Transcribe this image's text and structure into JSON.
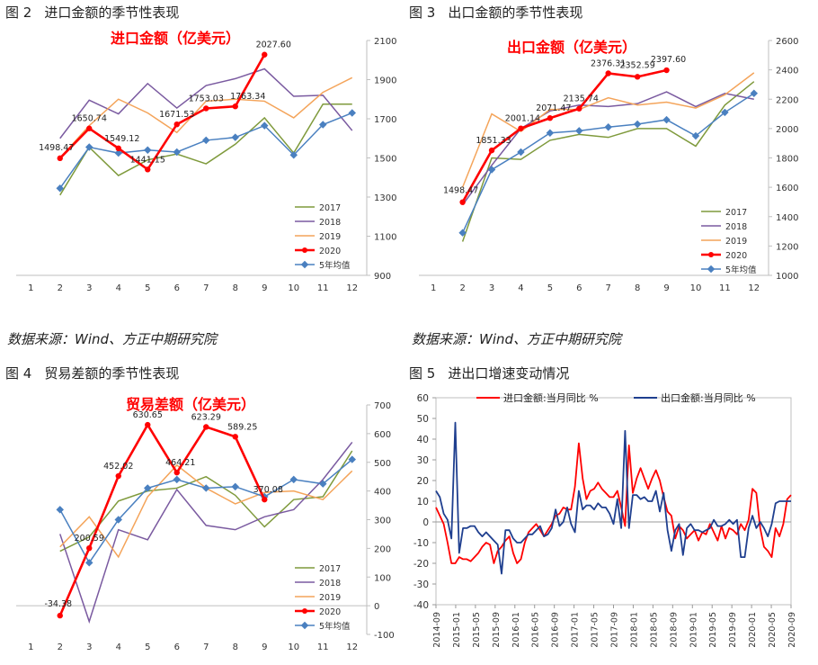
{
  "fig2": {
    "label": "图 2",
    "title": "进口金额的季节性表现",
    "chart_data": {
      "type": "line",
      "title": "进口金额（亿美元）",
      "categories": [
        "1",
        "2",
        "3",
        "4",
        "5",
        "6",
        "7",
        "8",
        "9",
        "10",
        "11",
        "12"
      ],
      "ylim": [
        900,
        2100
      ],
      "yticks": [
        "900",
        "1100",
        "1300",
        "1500",
        "1700",
        "1900",
        "2100"
      ],
      "series": [
        {
          "name": "2017",
          "color": "#7f9a3c",
          "values": [
            null,
            1310,
            1555,
            1410,
            1490,
            1520,
            1470,
            1570,
            1705,
            1525,
            1775,
            1775
          ]
        },
        {
          "name": "2018",
          "color": "#7a5aa0",
          "values": [
            null,
            1600,
            1795,
            1725,
            1880,
            1755,
            1870,
            1905,
            1955,
            1815,
            1820,
            1640
          ]
        },
        {
          "name": "2019",
          "color": "#f4a45a",
          "values": [
            null,
            1500,
            1665,
            1800,
            1730,
            1630,
            1790,
            1800,
            1790,
            1705,
            1835,
            1910
          ]
        },
        {
          "name": "2020",
          "color": "#ff0000",
          "values": [
            null,
            1498.47,
            1650.74,
            1549.12,
            1441.15,
            1671.53,
            1753.03,
            1763.34,
            2027.6,
            null,
            null,
            null
          ]
        },
        {
          "name": "5年均值",
          "color": "#4a80c0",
          "values": [
            null,
            1345,
            1555,
            1525,
            1540,
            1530,
            1590,
            1605,
            1665,
            1515,
            1670,
            1730
          ]
        }
      ],
      "data_labels": [
        "1498.47",
        "1650.74",
        "1549.12",
        "1441.15",
        "1671.53",
        "1753.03",
        "1763.34",
        "2027.60"
      ]
    }
  },
  "fig3": {
    "label": "图 3",
    "title": "出口金额的季节性表现",
    "chart_data": {
      "type": "line",
      "title": "出口金额（亿美元）",
      "categories": [
        "1",
        "2",
        "3",
        "4",
        "5",
        "6",
        "7",
        "8",
        "9",
        "10",
        "11",
        "12"
      ],
      "ylim": [
        1000,
        2600
      ],
      "yticks": [
        "1000",
        "1200",
        "1400",
        "1600",
        "1800",
        "2000",
        "2200",
        "2400",
        "2600"
      ],
      "series": [
        {
          "name": "2017",
          "color": "#7f9a3c",
          "values": [
            null,
            1230,
            1800,
            1790,
            1920,
            1960,
            1940,
            2000,
            2000,
            1880,
            2160,
            2320
          ]
        },
        {
          "name": "2018",
          "color": "#7a5aa0",
          "values": [
            null,
            1480,
            1750,
            2000,
            2120,
            2160,
            2150,
            2170,
            2250,
            2150,
            2240,
            2200
          ]
        },
        {
          "name": "2019",
          "color": "#f4a45a",
          "values": [
            null,
            1600,
            2100,
            1980,
            2130,
            2130,
            2210,
            2160,
            2180,
            2140,
            2230,
            2380
          ]
        },
        {
          "name": "2020",
          "color": "#ff0000",
          "values": [
            null,
            1498.47,
            1851.33,
            2001.14,
            2071.47,
            2135.74,
            2376.31,
            2352.59,
            2397.6,
            null,
            null,
            null
          ]
        },
        {
          "name": "5年均值",
          "color": "#4a80c0",
          "values": [
            null,
            1290,
            1720,
            1840,
            1970,
            1985,
            2010,
            2030,
            2060,
            1950,
            2110,
            2240
          ]
        }
      ],
      "data_labels": [
        "1498.47",
        "1851.33",
        "2001.14",
        "2071.47",
        "2135.74",
        "2376.31",
        "2352.59",
        "2397.60"
      ]
    }
  },
  "fig4": {
    "label": "图 4",
    "title": "贸易差额的季节性表现",
    "chart_data": {
      "type": "line",
      "title": "贸易差额（亿美元）",
      "categories": [
        "1",
        "2",
        "3",
        "4",
        "5",
        "6",
        "7",
        "8",
        "9",
        "10",
        "11",
        "12"
      ],
      "ylim": [
        -100,
        700
      ],
      "yticks": [
        "-100",
        "0",
        "100",
        "200",
        "300",
        "400",
        "500",
        "600",
        "700"
      ],
      "series": [
        {
          "name": "2017",
          "color": "#7f9a3c",
          "values": [
            null,
            190,
            240,
            365,
            400,
            410,
            450,
            385,
            275,
            370,
            380,
            540
          ]
        },
        {
          "name": "2018",
          "color": "#7a5aa0",
          "values": [
            null,
            250,
            -55,
            265,
            230,
            405,
            280,
            265,
            310,
            335,
            440,
            570
          ]
        },
        {
          "name": "2019",
          "color": "#f4a45a",
          "values": [
            null,
            205,
            310,
            170,
            380,
            490,
            410,
            355,
            395,
            400,
            370,
            470
          ]
        },
        {
          "name": "2020",
          "color": "#ff0000",
          "values": [
            null,
            -34.38,
            200.59,
            452.02,
            630.65,
            464.21,
            623.29,
            589.25,
            370.08,
            null,
            null,
            null
          ]
        },
        {
          "name": "5年均值",
          "color": "#4a80c0",
          "values": [
            null,
            335,
            150,
            300,
            410,
            440,
            410,
            415,
            380,
            440,
            425,
            510
          ]
        }
      ],
      "data_labels": [
        "-34.38",
        "200.59",
        "452.02",
        "630.65",
        "464.21",
        "623.29",
        "589.25",
        "370.08"
      ]
    }
  },
  "fig5": {
    "label": "图 5",
    "title": "进出口增速变动情况",
    "chart_data": {
      "type": "line",
      "title": "",
      "ylim": [
        -40,
        60
      ],
      "yticks": [
        "-40",
        "-30",
        "-20",
        "-10",
        "0",
        "10",
        "20",
        "30",
        "40",
        "50",
        "60"
      ],
      "xticks": [
        "2014-09",
        "2015-01",
        "2015-05",
        "2015-09",
        "2016-01",
        "2016-05",
        "2016-09",
        "2017-01",
        "2017-05",
        "2017-09",
        "2018-01",
        "2018-05",
        "2018-09",
        "2019-01",
        "2019-05",
        "2019-09",
        "2020-01",
        "2020-05",
        "2020-09"
      ],
      "series": [
        {
          "name": "进口金额:当月同比 %",
          "color": "#ff0000",
          "values": [
            7,
            3,
            -1,
            -10,
            -20,
            -20,
            -17,
            -18,
            -18,
            -19,
            -17,
            -15,
            -12,
            -10,
            -11,
            -20,
            -14,
            -12,
            -9,
            -7,
            -15,
            -20,
            -18,
            -10,
            -5,
            -3,
            -1,
            -4,
            -7,
            -4,
            -1,
            3,
            4,
            7,
            6,
            6,
            17,
            38,
            21,
            11,
            15,
            16,
            19,
            16,
            14,
            12,
            12,
            15,
            7,
            -2,
            37,
            14,
            21,
            26,
            21,
            16,
            21,
            25,
            20,
            12,
            5,
            3,
            -8,
            -2,
            -4,
            -8,
            -6,
            -4,
            -9,
            -5,
            -6,
            -1,
            -5,
            -9,
            -2,
            -8,
            -3,
            -4,
            -6,
            -1,
            -4,
            1,
            16,
            14,
            -3,
            -12,
            -14,
            -17,
            -3,
            -7,
            -1,
            11,
            13
          ]
        },
        {
          "name": "出口金额:当月同比 %",
          "color": "#1f3f8f",
          "values": [
            15,
            12,
            4,
            1,
            -8,
            48,
            -15,
            -3,
            -3,
            -2,
            -2,
            -5,
            -7,
            -5,
            -7,
            -9,
            -11,
            -25,
            -4,
            -4,
            -8,
            -10,
            -10,
            -8,
            -6,
            -6,
            -4,
            -2,
            -7,
            -6,
            -3,
            6,
            -2,
            0,
            7,
            -1,
            -5,
            15,
            6,
            8,
            8,
            6,
            9,
            7,
            7,
            4,
            -1,
            11,
            -3,
            44,
            -3,
            13,
            13,
            11,
            12,
            10,
            10,
            15,
            5,
            14,
            -4,
            -14,
            -4,
            -1,
            -16,
            -3,
            -1,
            -4,
            -4,
            -5,
            -4,
            -3,
            1,
            -2,
            -2,
            -1,
            1,
            -1,
            1,
            -17,
            -17,
            -3,
            3,
            -3,
            0,
            -3,
            -7,
            -1,
            9,
            10,
            10,
            10,
            10
          ]
        }
      ]
    }
  },
  "sources": [
    "数据来源：Wind、方正中期研究院",
    "数据来源：Wind、方正中期研究院"
  ]
}
